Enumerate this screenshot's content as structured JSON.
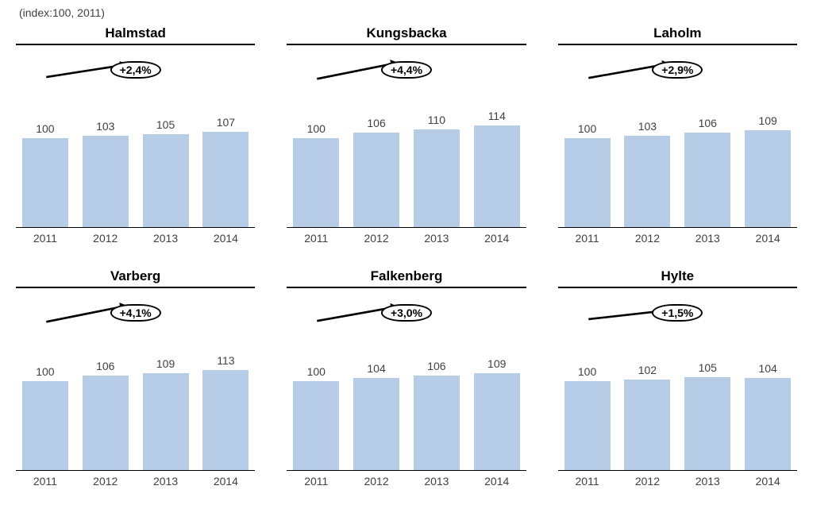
{
  "caption": "(index:100, 2011)",
  "global": {
    "bar_color": "#b7cce6",
    "background_color": "#ffffff",
    "text_color": "#404040",
    "title_fontsize": 17,
    "label_fontsize": 14,
    "value_fontsize": 14,
    "arrow_color": "#000000",
    "badge_border_color": "#000000",
    "y_max": 160,
    "font_family": "Arial"
  },
  "panels": [
    {
      "title": "Halmstad",
      "trend": "+2,4%",
      "years": [
        "2011",
        "2012",
        "2013",
        "2014"
      ],
      "values": [
        100,
        103,
        105,
        107
      ]
    },
    {
      "title": "Kungsbacka",
      "trend": "+4,4%",
      "years": [
        "2011",
        "2012",
        "2013",
        "2014"
      ],
      "values": [
        100,
        106,
        110,
        114
      ]
    },
    {
      "title": "Laholm",
      "trend": "+2,9%",
      "years": [
        "2011",
        "2012",
        "2013",
        "2014"
      ],
      "values": [
        100,
        103,
        106,
        109
      ]
    },
    {
      "title": "Varberg",
      "trend": "+4,1%",
      "years": [
        "2011",
        "2012",
        "2013",
        "2014"
      ],
      "values": [
        100,
        106,
        109,
        113
      ]
    },
    {
      "title": "Falkenberg",
      "trend": "+3,0%",
      "years": [
        "2011",
        "2012",
        "2013",
        "2014"
      ],
      "values": [
        100,
        104,
        106,
        109
      ]
    },
    {
      "title": "Hylte",
      "trend": "+1,5%",
      "years": [
        "2011",
        "2012",
        "2013",
        "2014"
      ],
      "values": [
        100,
        102,
        105,
        104
      ]
    }
  ]
}
